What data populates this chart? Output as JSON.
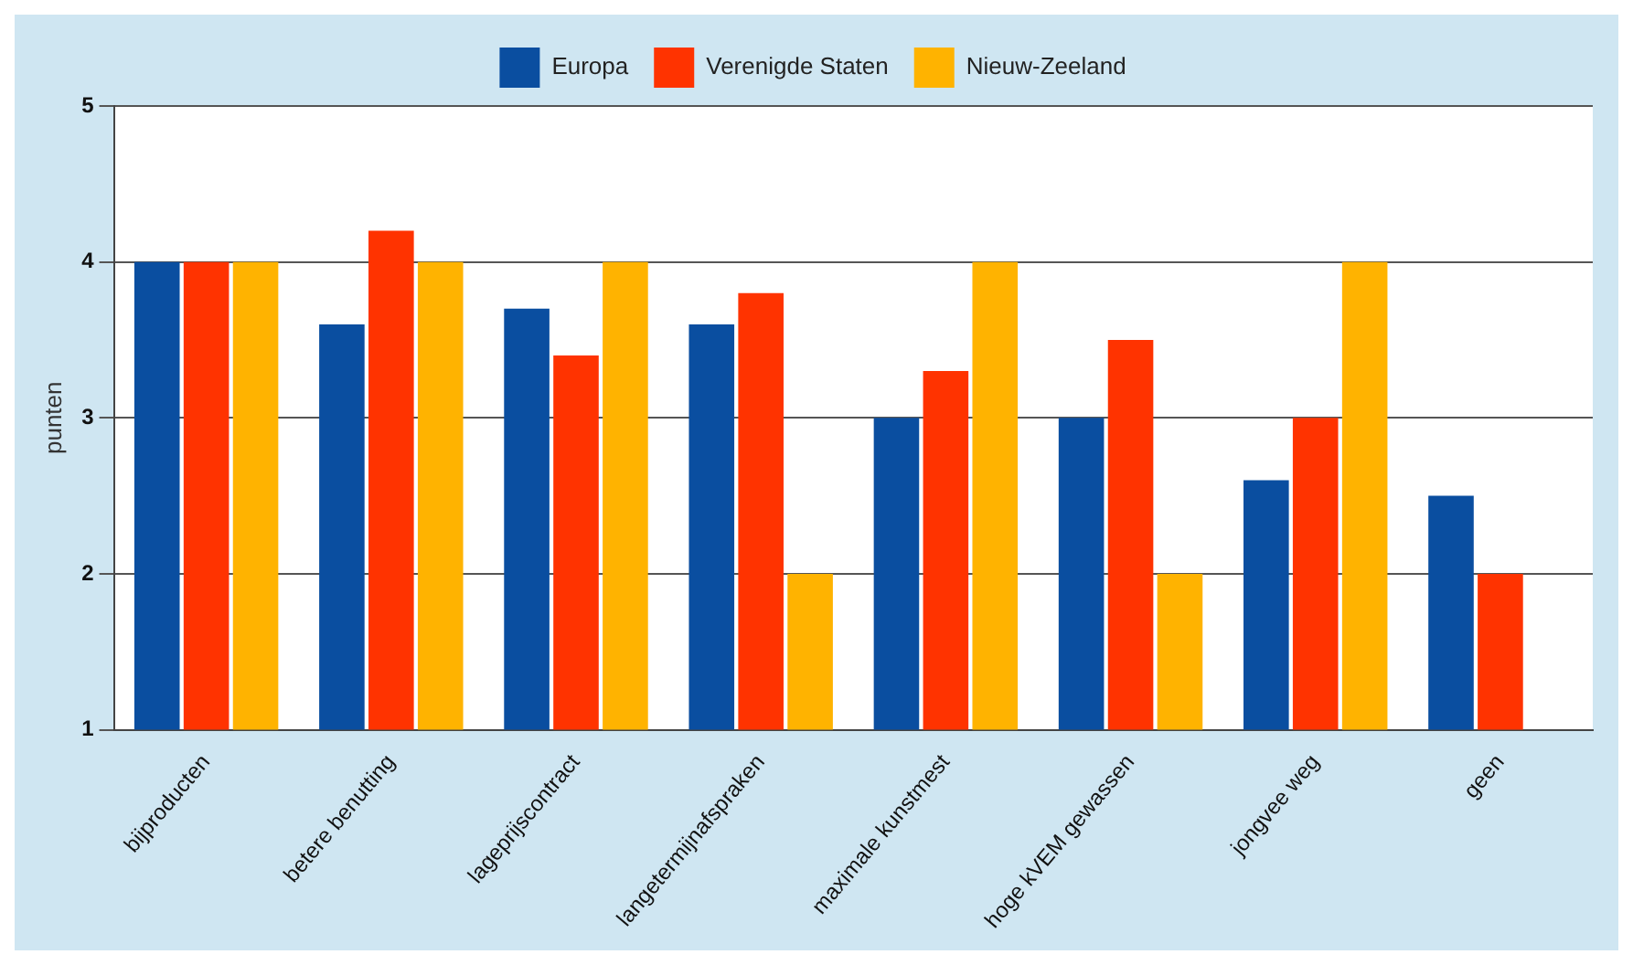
{
  "chart_data": {
    "type": "bar",
    "ylabel": "punten",
    "categories": [
      "bijproducten",
      "betere benutting",
      "lageprijscontract",
      "langetermijnafspraken",
      "maximale kunstmest",
      "hoge kVEM gewassen",
      "jongvee weg",
      "geen"
    ],
    "series": [
      {
        "name": "Europa",
        "color": "#0a4ea0",
        "values": [
          4,
          3.6,
          3.7,
          3.6,
          3.0,
          3.0,
          2.6,
          2.5
        ]
      },
      {
        "name": "Verenigde Staten",
        "color": "#ff3300",
        "values": [
          4,
          4.2,
          3.4,
          3.8,
          3.3,
          3.5,
          3.0,
          2.0
        ]
      },
      {
        "name": "Nieuw-Zeeland",
        "color": "#ffb300",
        "values": [
          4,
          4,
          4,
          2,
          4,
          2,
          4,
          null
        ]
      }
    ],
    "ylim": [
      1,
      5
    ],
    "yticks": [
      1,
      2,
      3,
      4,
      5
    ],
    "grid": "y",
    "legend": "top"
  }
}
